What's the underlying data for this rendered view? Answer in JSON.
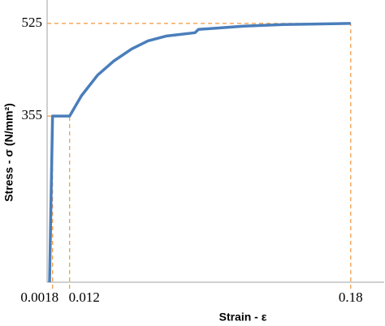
{
  "chart_data": {
    "type": "line",
    "x_label": "Strain - ε",
    "y_label": "Stress - σ (N/mm²)",
    "x": [
      0,
      0.0018,
      0.012,
      0.019,
      0.0287,
      0.0384,
      0.049,
      0.0588,
      0.07,
      0.087,
      0.089,
      0.116,
      0.14,
      0.18
    ],
    "series": [
      {
        "color": "#4a7ebb",
        "values": [
          50,
          355,
          355,
          392,
          430,
          456,
          478,
          493,
          502,
          508,
          514,
          520,
          523,
          525
        ]
      }
    ],
    "xlim": [
      0,
      0.2
    ],
    "ylim": [
      50,
      568
    ],
    "xticks": [
      0.0018,
      0.012,
      0.18
    ],
    "yticks": [
      355,
      525
    ],
    "guide_color": "#f0963c",
    "axis_color": "#a0a0a0"
  }
}
